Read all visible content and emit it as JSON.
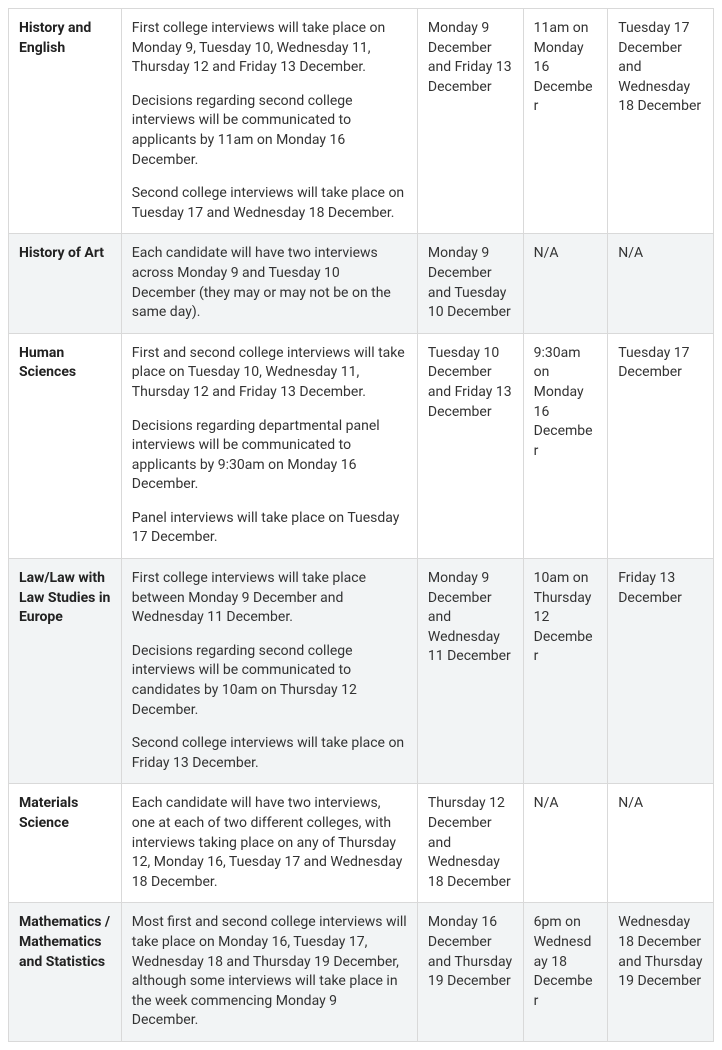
{
  "colors": {
    "row_odd_bg": "#ffffff",
    "row_even_bg": "#f2f4f5",
    "border": "#d9d9d9",
    "text": "#333333",
    "subject_text": "#222222"
  },
  "typography": {
    "body_fontsize_pt": 10.5,
    "subject_weight": 700,
    "line_height": 1.4
  },
  "columns": {
    "widths_percent": [
      16,
      42,
      15,
      12,
      15
    ]
  },
  "rows": [
    {
      "subject": "History and English",
      "description": [
        "First college interviews will take place on Monday 9, Tuesday 10, Wednesday 11, Thursday 12 and Friday 13 December.",
        "Decisions regarding second college interviews will be communicated to applicants by 11am on Monday 16 December.",
        "Second college interviews will take place on Tuesday 17 and Wednesday 18 December."
      ],
      "col3": "Monday 9 December and Friday 13 December",
      "col4": "11am on Monday 16 December",
      "col5": "Tuesday 17 December and Wednesday 18 December"
    },
    {
      "subject": "History of Art",
      "description": [
        "Each candidate will have two interviews across Monday 9 and Tuesday 10 December (they may or may not be on the same day)."
      ],
      "col3": "Monday 9 December and Tuesday 10 December",
      "col4": "N/A",
      "col5": "N/A"
    },
    {
      "subject": "Human Sciences",
      "description": [
        "First and second college interviews will take place on Tuesday 10, Wednesday 11, Thursday 12 and Friday 13 December.",
        "Decisions regarding departmental panel interviews will be communicated to applicants by 9:30am on Monday 16 December.",
        "Panel interviews will take place on Tuesday 17 December."
      ],
      "col3": "Tuesday 10 December and Friday 13 December",
      "col4": "9:30am on Monday 16 December",
      "col5": "Tuesday 17 December"
    },
    {
      "subject": "Law/Law with Law Studies in Europe",
      "description": [
        "First college interviews will take place between Monday 9 December and Wednesday 11 December.",
        "Decisions regarding second college interviews will be communicated to candidates by 10am on Thursday 12 December.",
        "Second college interviews will take place on Friday 13 December."
      ],
      "col3": "Monday 9 December and Wednesday 11 December",
      "col4": "10am on Thursday 12 December",
      "col5": "Friday 13 December"
    },
    {
      "subject": "Materials Science",
      "description": [
        "Each candidate will have two interviews, one at each of two different colleges, with interviews taking place on any of Thursday 12, Monday 16, Tuesday 17 and Wednesday 18 December."
      ],
      "col3": "Thursday 12 December and Wednesday 18 December",
      "col4": "N/A",
      "col5": "N/A"
    },
    {
      "subject": "Mathematics / Mathematics and Statistics",
      "description": [
        "Most first and second college interviews will take place on Monday 16, Tuesday 17, Wednesday 18 and Thursday 19 December, although some interviews will take place in the week commencing Monday 9 December."
      ],
      "col3": "Monday 16 December and Thursday 19 December",
      "col4": "6pm on Wednesday 18 December",
      "col5": "Wednesday 18 December and Thursday 19 December"
    }
  ]
}
